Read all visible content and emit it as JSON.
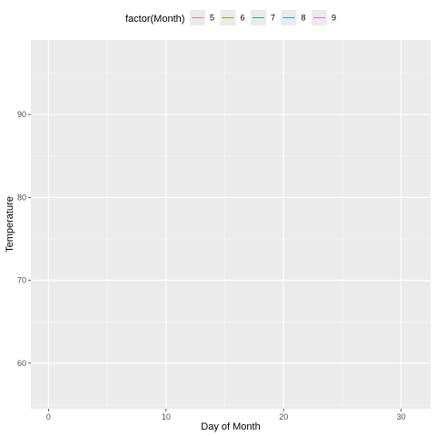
{
  "chart_data": {
    "type": "line",
    "xlabel": "Day of Month",
    "ylabel": "Temperature",
    "xlim": [
      -1.5,
      32.5
    ],
    "ylim": [
      54.5,
      99
    ],
    "x_ticks": [
      0,
      10,
      20,
      30
    ],
    "x_minor_ticks": [
      5,
      15,
      25
    ],
    "y_ticks": [
      60,
      70,
      80,
      90
    ],
    "y_minor_ticks": [
      55,
      65,
      75,
      85,
      95
    ],
    "grid": true,
    "legend": {
      "title": "factor(Month)",
      "position": "top",
      "entries": [
        {
          "label": "5",
          "color": "#F8766D"
        },
        {
          "label": "6",
          "color": "#A3A500"
        },
        {
          "label": "7",
          "color": "#00BF7D"
        },
        {
          "label": "8",
          "color": "#00B0F6"
        },
        {
          "label": "9",
          "color": "#E76BF3"
        }
      ]
    },
    "series": []
  },
  "colors": {
    "panel_background": "#EBEBEB",
    "major_grid": "#FFFFFF",
    "minor_grid": "#F5F5F5"
  }
}
